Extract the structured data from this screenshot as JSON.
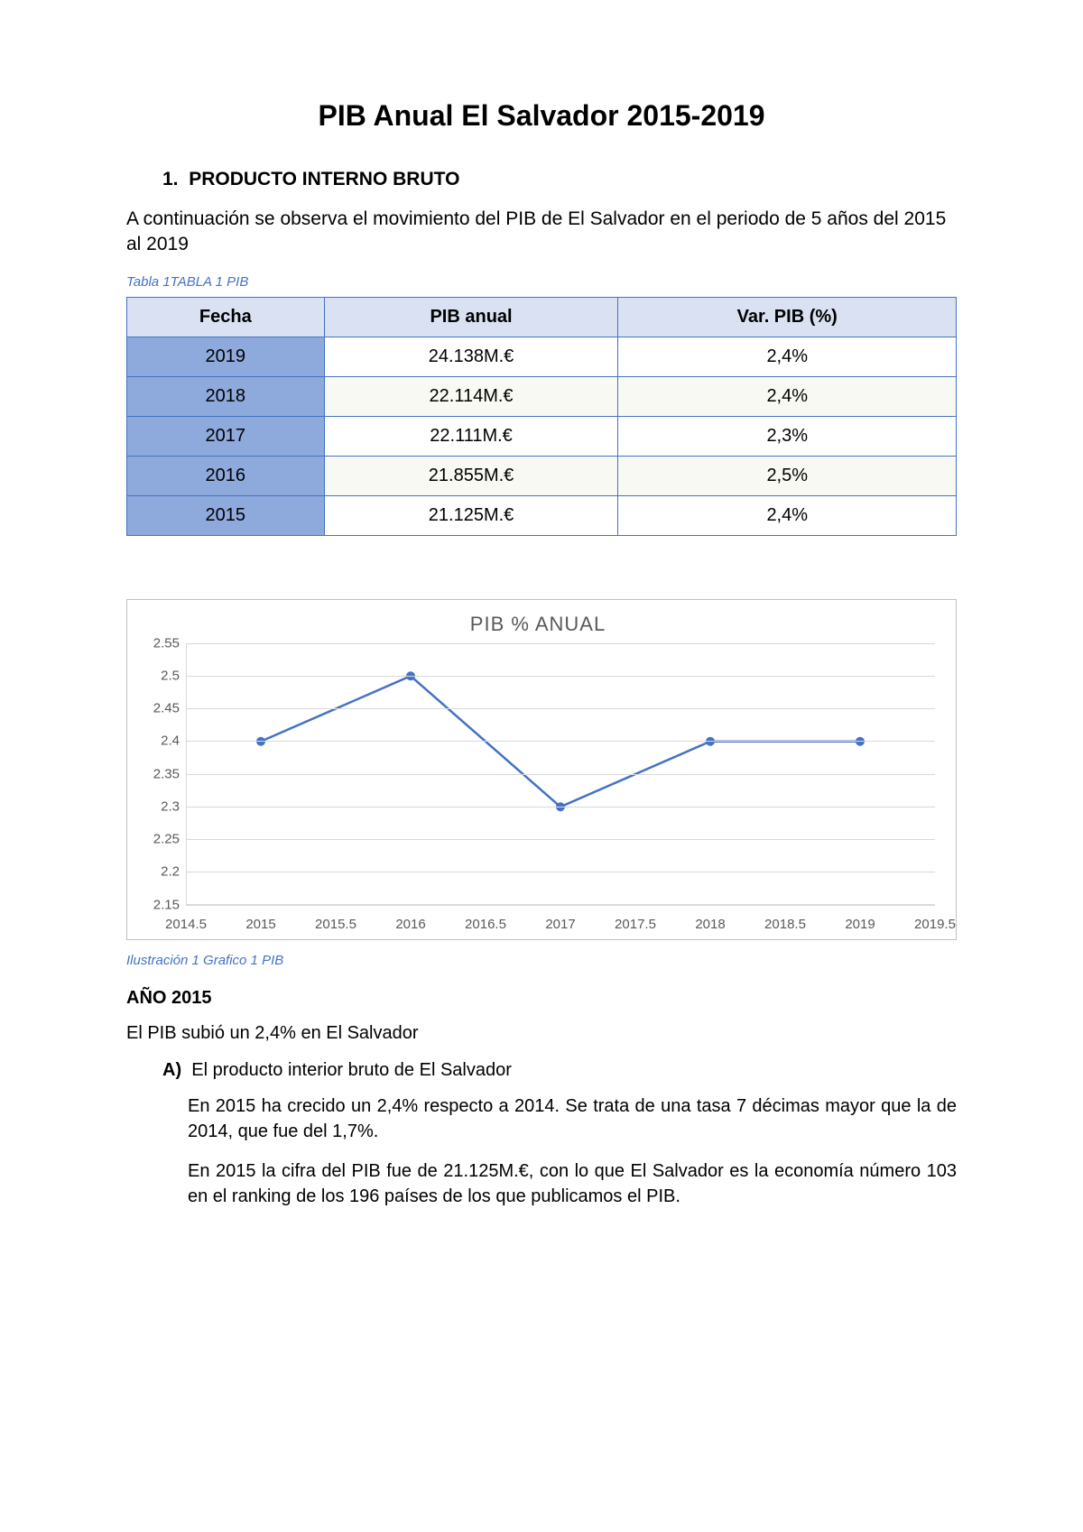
{
  "title": "PIB Anual El Salvador 2015-2019",
  "section1": {
    "number": "1.",
    "heading": "PRODUCTO INTERNO BRUTO",
    "intro": "A continuación se observa el movimiento del PIB de El Salvador en el periodo de 5 años del 2015 al 2019",
    "table_caption": "Tabla 1TABLA 1 PIB"
  },
  "table": {
    "header_bg": "#d9e1f2",
    "year_col_bg": "#8ea9db",
    "row_alt_bg": "#f9f9f4",
    "border_color": "#4472c4",
    "columns": [
      "Fecha",
      "PIB anual",
      "Var. PIB (%)"
    ],
    "rows": [
      [
        "2019",
        "24.138M.€",
        "2,4%"
      ],
      [
        "2018",
        "22.114M.€",
        "2,4%"
      ],
      [
        "2017",
        "22.111M.€",
        "2,3%"
      ],
      [
        "2016",
        "21.855M.€",
        "2,5%"
      ],
      [
        "2015",
        "21.125M.€",
        "2,4%"
      ]
    ]
  },
  "chart": {
    "type": "line",
    "title": "PIB % ANUAL",
    "title_color": "#595959",
    "line_color": "#4472c4",
    "marker_color": "#4472c4",
    "grid_color": "#d9d9d9",
    "background_color": "#ffffff",
    "border_color": "#bfbfbf",
    "line_width": 2.5,
    "marker_radius": 5,
    "xlim": [
      2014.5,
      2019.5
    ],
    "ylim": [
      2.15,
      2.55
    ],
    "xticks": [
      2014.5,
      2015,
      2015.5,
      2016,
      2016.5,
      2017,
      2017.5,
      2018,
      2018.5,
      2019,
      2019.5
    ],
    "yticks": [
      2.15,
      2.2,
      2.25,
      2.3,
      2.35,
      2.4,
      2.45,
      2.5,
      2.55
    ],
    "x": [
      2015,
      2016,
      2017,
      2018,
      2019
    ],
    "y": [
      2.4,
      2.5,
      2.3,
      2.4,
      2.4
    ],
    "label_fontsize": 15,
    "label_color": "#595959"
  },
  "fig_caption": "Ilustración 1 Grafico 1 PIB",
  "year2015": {
    "heading": "AÑO 2015",
    "line1": "El PIB subió un 2,4% en El Salvador",
    "item_label": "A)",
    "item_text": "El producto interior bruto de El Salvador",
    "para1": "En 2015 ha crecido un 2,4% respecto a 2014. Se trata de una tasa 7 décimas mayor que la de 2014, que fue del 1,7%.",
    "para2": "En 2015 la cifra del PIB fue de 21.125M.€, con lo que El Salvador es la economía número 103 en el ranking de los 196 países de los que publicamos el PIB."
  }
}
